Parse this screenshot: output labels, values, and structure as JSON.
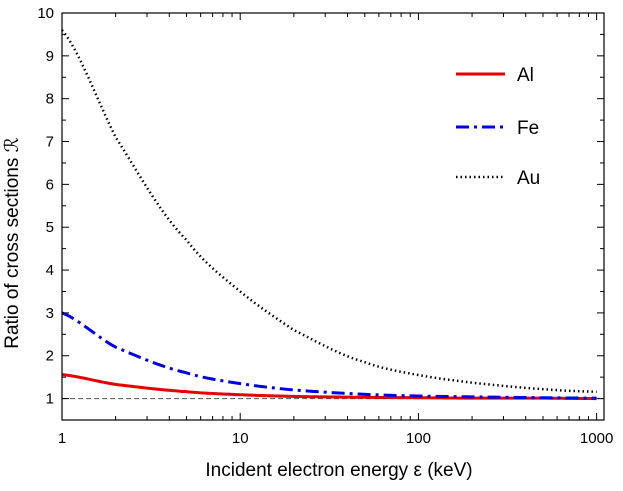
{
  "chart_data": {
    "type": "line",
    "title": "",
    "xlabel": "Incident electron energy ε (keV)",
    "ylabel": "Ratio of cross sections ℛ",
    "xscale": "log",
    "xlim": [
      1,
      1100
    ],
    "ylim": [
      0.5,
      10
    ],
    "x_ticks": [
      1,
      10,
      100,
      1000
    ],
    "x_tick_labels": [
      "1",
      "10",
      "100",
      "1000"
    ],
    "y_ticks": [
      1,
      2,
      3,
      4,
      5,
      6,
      7,
      8,
      9,
      10
    ],
    "y_tick_labels": [
      "1",
      "2",
      "3",
      "4",
      "5",
      "6",
      "7",
      "8",
      "9",
      "10"
    ],
    "grid": false,
    "legend_position": "top-right",
    "reference_line": {
      "y": 1,
      "style": "dashed",
      "color": "#555555"
    },
    "x": [
      1,
      2,
      5,
      10,
      20,
      50,
      100,
      200,
      500,
      1000
    ],
    "series": [
      {
        "name": "Al",
        "color": "#e60000",
        "style": "solid",
        "values": [
          1.56,
          1.33,
          1.16,
          1.09,
          1.05,
          1.03,
          1.02,
          1.01,
          1.01,
          1.0
        ]
      },
      {
        "name": "Fe",
        "color": "#0000e6",
        "style": "dashdot",
        "values": [
          3.0,
          2.2,
          1.6,
          1.35,
          1.2,
          1.1,
          1.06,
          1.04,
          1.02,
          1.01
        ]
      },
      {
        "name": "Au",
        "color": "#000000",
        "style": "dotted",
        "values": [
          9.6,
          7.1,
          4.7,
          3.5,
          2.6,
          1.85,
          1.55,
          1.37,
          1.22,
          1.16
        ]
      }
    ]
  }
}
